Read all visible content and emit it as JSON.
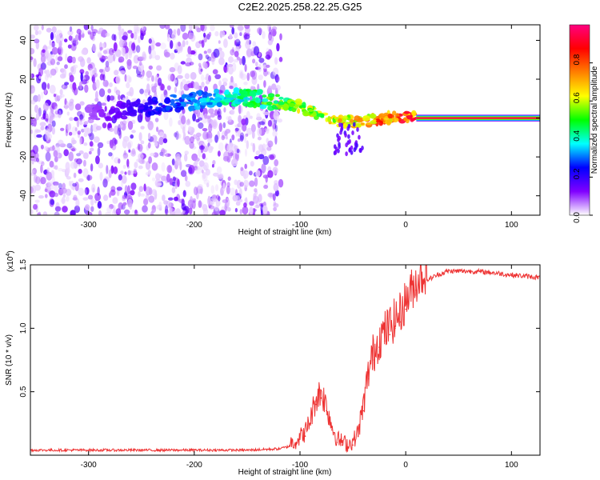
{
  "title": "C2E2.2025.258.22.25.G25",
  "chart_data": [
    {
      "type": "heatmap",
      "xlabel": "Height of straight line (km)",
      "ylabel": "Frequency (Hz)",
      "xlim": [
        -355,
        127
      ],
      "ylim": [
        -50,
        48
      ],
      "x_ticks": [
        -300,
        -200,
        -100,
        0,
        100
      ],
      "x_tick_labels": [
        "-300",
        "-200",
        "-100",
        "0",
        "100"
      ],
      "y_ticks": [
        -40,
        -20,
        0,
        20,
        40
      ],
      "y_tick_labels": [
        "-40",
        "-20",
        "0",
        "20",
        "40"
      ],
      "colorbar": {
        "label": "Normalized spectral amplitude",
        "range": [
          0,
          1
        ],
        "ticks": [
          0.0,
          0.2,
          0.4,
          0.6,
          0.8
        ],
        "tick_labels": [
          "0.0",
          "0.2",
          "0.4",
          "0.6",
          "0.8"
        ],
        "colormap": [
          "#ffffff",
          "#8000ff",
          "#0000ff",
          "#00ffff",
          "#00ff00",
          "#ffff00",
          "#ff8000",
          "#ff0000",
          "#ff0080"
        ]
      },
      "noise_region_x": [
        -355,
        -118
      ],
      "ridge": [
        {
          "x": -280,
          "y": 3
        },
        {
          "x": -200,
          "y": 9
        },
        {
          "x": -170,
          "y": 11
        },
        {
          "x": -140,
          "y": 10
        },
        {
          "x": -120,
          "y": 8
        },
        {
          "x": -100,
          "y": 6
        },
        {
          "x": -80,
          "y": 1
        },
        {
          "x": -60,
          "y": -2
        },
        {
          "x": -40,
          "y": -2
        },
        {
          "x": -20,
          "y": 0
        },
        {
          "x": 0,
          "y": 1
        },
        {
          "x": 127,
          "y": 0
        }
      ],
      "constant_band": {
        "x": [
          10,
          127
        ],
        "y": 0
      }
    },
    {
      "type": "line",
      "xlabel": "Height of straight line (km)",
      "ylabel": "SNR (10 * v/v)",
      "y_multiplier": "(x10",
      "y_multiplier_exponent": "4",
      "y_multiplier_close": ")",
      "xlim": [
        -355,
        127
      ],
      "ylim": [
        0.0,
        1.5
      ],
      "x_ticks": [
        -300,
        -200,
        -100,
        0,
        100
      ],
      "x_tick_labels": [
        "-300",
        "-200",
        "-100",
        "0",
        "100"
      ],
      "y_ticks": [
        0.5,
        1.0,
        1.5
      ],
      "y_tick_labels": [
        "0.5",
        "1.0",
        "1.5"
      ],
      "line_color": "#ee3333",
      "series": [
        {
          "x": [
            -355,
            -300,
            -250,
            -200,
            -150,
            -120,
            -105,
            -95,
            -90,
            -85,
            -80,
            -75,
            -70,
            -65,
            -60,
            -55,
            -50,
            -45,
            -40,
            -35,
            -30,
            -25,
            -20,
            -15,
            -10,
            -5,
            0,
            10,
            20,
            30,
            40,
            50,
            60,
            80,
            100,
            127
          ],
          "y": [
            0.04,
            0.04,
            0.04,
            0.04,
            0.04,
            0.05,
            0.08,
            0.15,
            0.25,
            0.4,
            0.45,
            0.35,
            0.2,
            0.1,
            0.08,
            0.06,
            0.08,
            0.15,
            0.35,
            0.6,
            0.75,
            0.85,
            0.9,
            0.95,
            1.0,
            1.05,
            1.15,
            1.3,
            1.38,
            1.42,
            1.45,
            1.45,
            1.45,
            1.44,
            1.42,
            1.4
          ]
        }
      ]
    }
  ]
}
